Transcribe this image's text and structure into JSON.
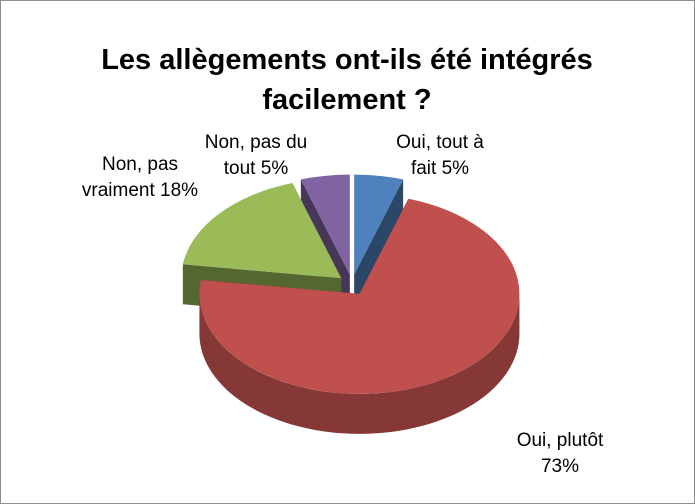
{
  "chart_data": {
    "type": "pie3d",
    "title": "Les allègements ont-ils été intégrés facilement ?",
    "categories": [
      "Oui, tout à fait",
      "Oui, plutôt",
      "Non, pas vraiment",
      "Non, pas du tout"
    ],
    "values": [
      5,
      73,
      18,
      5
    ],
    "value_labels": [
      "5%",
      "73%",
      "18%",
      "5%"
    ],
    "colors": [
      "#4f81bd",
      "#c0504d",
      "#9bbb59",
      "#8064a2"
    ],
    "exploded": true
  }
}
